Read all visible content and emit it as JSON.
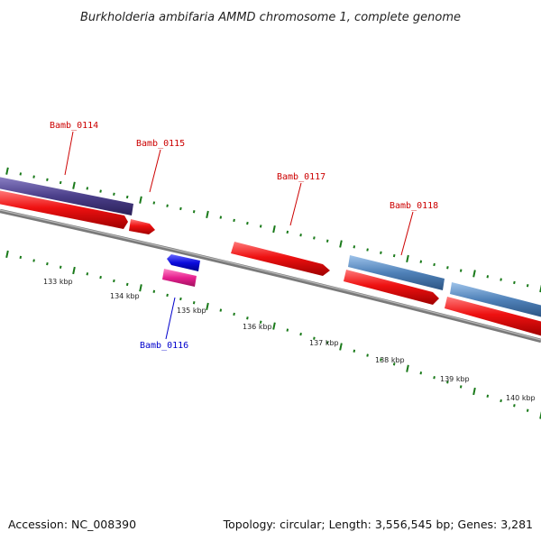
{
  "title": "Burkholderia ambifaria AMMD chromosome 1, complete genome",
  "footer": {
    "accession": "Accession: NC_008390",
    "summary": "Topology: circular; Length: 3,556,545 bp; Genes: 3,281"
  },
  "colors": {
    "forward_label": "#cc0000",
    "reverse_label": "#0000cc",
    "tick": "#1a7a1a",
    "backbone": "#7a7a7a"
  },
  "kbp_labels": [
    "133 kbp",
    "134 kbp",
    "135 kbp",
    "136 kbp",
    "137 kbp",
    "138 kbp",
    "139 kbp",
    "140 kbp"
  ],
  "gene_labels": [
    {
      "name": "Bamb_0114",
      "strand": "forward"
    },
    {
      "name": "Bamb_0115",
      "strand": "forward"
    },
    {
      "name": "Bamb_0116",
      "strand": "reverse"
    },
    {
      "name": "Bamb_0117",
      "strand": "forward"
    },
    {
      "name": "Bamb_0118",
      "strand": "forward"
    }
  ],
  "features": [
    {
      "name": "purple-feature-bar",
      "color": "#4b3f8a"
    },
    {
      "name": "light-blue-feature-bar",
      "color": "#4f81b8"
    },
    {
      "name": "light-blue-feature-bar-2",
      "color": "#4f81b8"
    },
    {
      "name": "red-gene-arrow",
      "color": "#ee1111"
    },
    {
      "name": "red-gene-arrow-small",
      "color": "#ee1111"
    },
    {
      "name": "red-gene-arrow-long",
      "color": "#ee1111"
    },
    {
      "name": "red-gene-arrow-right",
      "color": "#ee1111"
    },
    {
      "name": "red-gene-arrow-far-right",
      "color": "#ee1111"
    },
    {
      "name": "blue-gene-arrow-reverse",
      "color": "#0b0bdd"
    },
    {
      "name": "magenta-feature-bar",
      "color": "#e6208f"
    }
  ]
}
